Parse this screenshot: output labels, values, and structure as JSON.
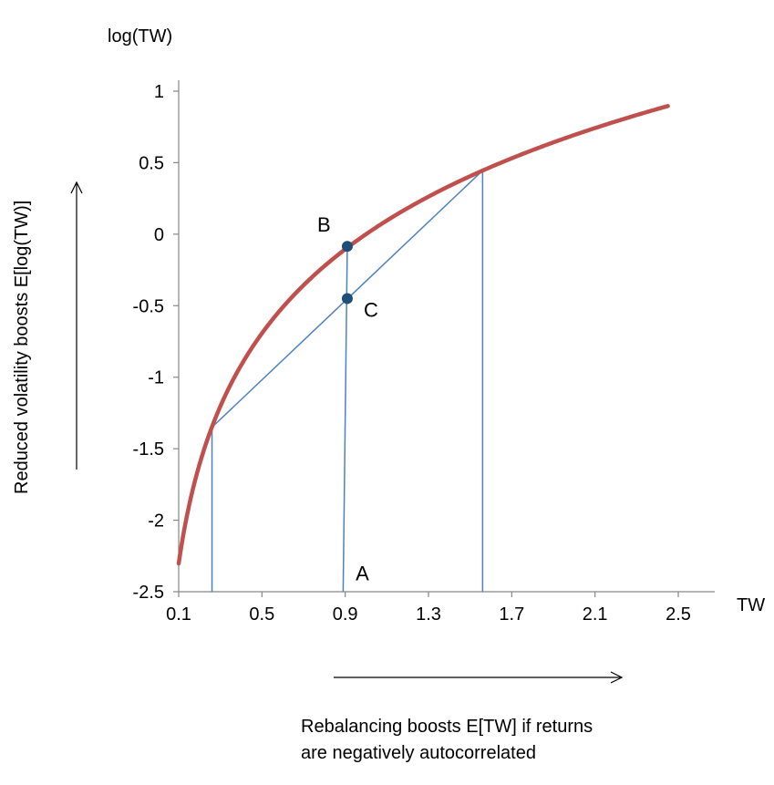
{
  "chart_data": {
    "type": "line",
    "ylabel_top": "log(TW)",
    "xlabel": "TW",
    "y_arrow_label": "Reduced volatility boosts E[log(TW)]",
    "x_arrow_label_line1": "Rebalancing boosts E[TW] if returns",
    "x_arrow_label_line2": "are negatively autocorrelated",
    "xlim": [
      0.1,
      2.5
    ],
    "ylim": [
      -2.5,
      1
    ],
    "x_ticks": [
      "0.1",
      "0.5",
      "0.9",
      "1.3",
      "1.7",
      "2.1",
      "2.5"
    ],
    "y_ticks": [
      "1",
      "0.5",
      "0",
      "-0.5",
      "-1",
      "-1.5",
      "-2",
      "-2.5"
    ],
    "grid": false,
    "colors": {
      "curve": "#c0504d",
      "lines": "#4f81bd",
      "points": "#1f4e79",
      "axis": "#868686"
    },
    "series": [
      {
        "function": "log",
        "x_range": [
          0.1,
          2.45
        ]
      }
    ],
    "chord": {
      "x1": 0.26,
      "y1": -1.35,
      "x2": 1.56,
      "y2": 0.445
    },
    "verticals": [
      {
        "x": 0.26,
        "y_top": -1.35
      },
      {
        "x": 1.56,
        "y_top": 0.445
      },
      {
        "x_bottom": 0.89,
        "x_top": 0.91,
        "y_top": -0.085
      }
    ],
    "points": [
      {
        "label": "B",
        "x": 0.91,
        "y": -0.085
      },
      {
        "label": "C",
        "x": 0.91,
        "y": -0.45
      }
    ],
    "annotations": [
      {
        "label": "A",
        "x": 0.95,
        "y": -2.42
      }
    ]
  }
}
